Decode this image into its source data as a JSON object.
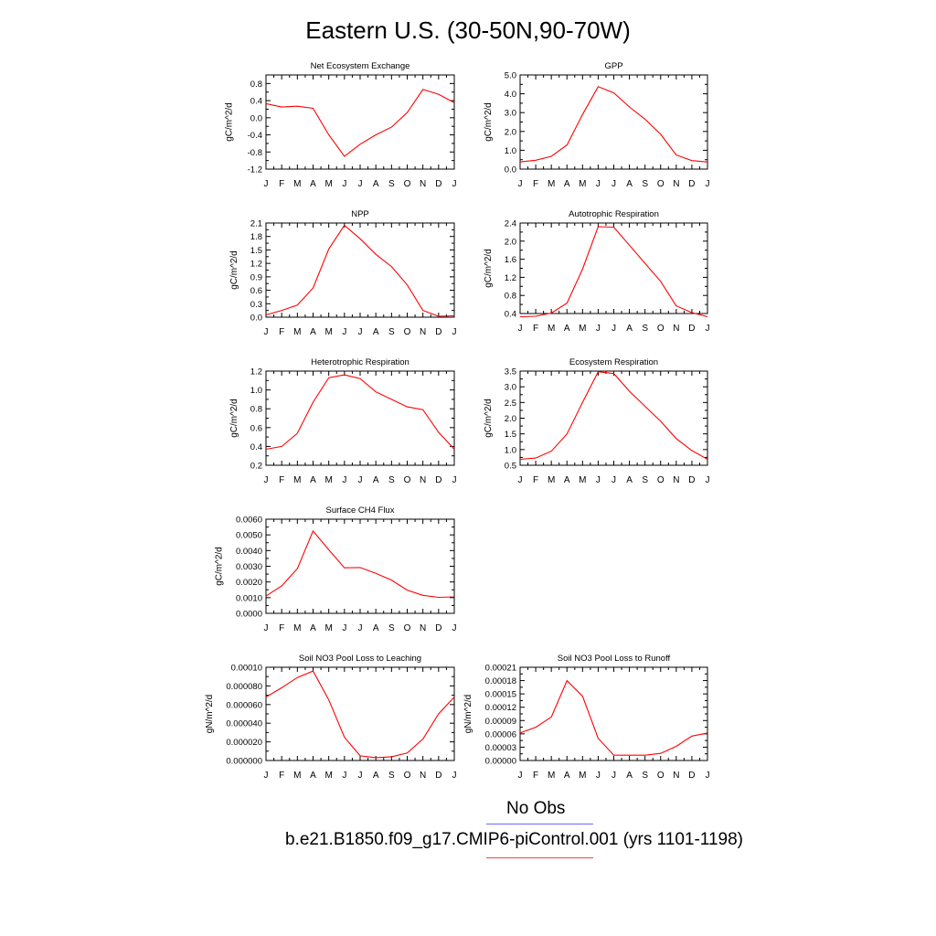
{
  "page": {
    "title": "Eastern U.S. (30-50N,90-70W)"
  },
  "legend": {
    "obs_label": "No Obs",
    "obs_color": "#6b6bff",
    "case_label": "b.e21.B1850.f09_g17.CMIP6-piControl.001 (yrs 1101-1198)",
    "case_color": "#ff4040"
  },
  "line_color": "#ff0000",
  "chart_data": [
    {
      "type": "line",
      "title": "Net Ecosystem Exchange",
      "ylabel": "gC/m^2/d",
      "categories": [
        "J",
        "F",
        "M",
        "A",
        "M",
        "J",
        "J",
        "A",
        "S",
        "O",
        "N",
        "D",
        "J"
      ],
      "values": [
        0.33,
        0.25,
        0.27,
        0.22,
        -0.4,
        -0.9,
        -0.62,
        -0.4,
        -0.22,
        0.12,
        0.66,
        0.55,
        0.35
      ],
      "ylim": [
        -1.2,
        1.0
      ],
      "yticks": [
        -1.2,
        -0.8,
        -0.4,
        0.0,
        0.4,
        0.8
      ],
      "ytick_labels": [
        "-1.2",
        "-0.8",
        "-0.4",
        "0.0",
        "0.4",
        "0.8"
      ]
    },
    {
      "type": "line",
      "title": "GPP",
      "ylabel": "gC/m^2/d",
      "categories": [
        "J",
        "F",
        "M",
        "A",
        "M",
        "J",
        "J",
        "A",
        "S",
        "O",
        "N",
        "D",
        "J"
      ],
      "values": [
        0.38,
        0.47,
        0.68,
        1.28,
        2.9,
        4.38,
        4.05,
        3.3,
        2.65,
        1.85,
        0.75,
        0.45,
        0.38
      ],
      "ylim": [
        0.0,
        5.0
      ],
      "yticks": [
        0,
        1,
        2,
        3,
        4,
        5
      ],
      "ytick_labels": [
        "0.0",
        "1.0",
        "2.0",
        "3.0",
        "4.0",
        "5.0"
      ]
    },
    {
      "type": "line",
      "title": "NPP",
      "ylabel": "gC/m^2/d",
      "categories": [
        "J",
        "F",
        "M",
        "A",
        "M",
        "J",
        "J",
        "A",
        "S",
        "O",
        "N",
        "D",
        "J"
      ],
      "values": [
        0.05,
        0.15,
        0.27,
        0.65,
        1.52,
        2.05,
        1.75,
        1.4,
        1.13,
        0.72,
        0.15,
        0.02,
        0.03
      ],
      "ylim": [
        0.0,
        2.1
      ],
      "yticks": [
        0,
        0.3,
        0.6,
        0.9,
        1.2,
        1.5,
        1.8,
        2.1
      ],
      "ytick_labels": [
        "0.0",
        "0.3",
        "0.6",
        "0.9",
        "1.2",
        "1.5",
        "1.8",
        "2.1"
      ]
    },
    {
      "type": "line",
      "title": "Autotrophic Respiration",
      "ylabel": "gC/m^2/d",
      "categories": [
        "J",
        "F",
        "M",
        "A",
        "M",
        "J",
        "J",
        "A",
        "S",
        "O",
        "N",
        "D",
        "J"
      ],
      "values": [
        0.33,
        0.34,
        0.41,
        0.63,
        1.38,
        2.32,
        2.31,
        1.91,
        1.51,
        1.11,
        0.57,
        0.42,
        0.33
      ],
      "ylim": [
        0.4,
        2.4
      ],
      "yticks": [
        0.4,
        0.8,
        1.2,
        1.6,
        2.0,
        2.4
      ],
      "ytick_labels": [
        "0.4",
        "0.8",
        "1.2",
        "1.6",
        "2.0",
        "2.4"
      ]
    },
    {
      "type": "line",
      "title": "Heterotrophic Respiration",
      "ylabel": "gC/m^2/d",
      "categories": [
        "J",
        "F",
        "M",
        "A",
        "M",
        "J",
        "J",
        "A",
        "S",
        "O",
        "N",
        "D",
        "J"
      ],
      "values": [
        0.37,
        0.4,
        0.54,
        0.87,
        1.13,
        1.16,
        1.12,
        0.98,
        0.9,
        0.82,
        0.79,
        0.55,
        0.37
      ],
      "ylim": [
        0.2,
        1.2
      ],
      "yticks": [
        0.2,
        0.4,
        0.6,
        0.8,
        1.0,
        1.2
      ],
      "ytick_labels": [
        "0.2",
        "0.4",
        "0.6",
        "0.8",
        "1.0",
        "1.2"
      ]
    },
    {
      "type": "line",
      "title": "Ecosystem Respiration",
      "ylabel": "gC/m^2/d",
      "categories": [
        "J",
        "F",
        "M",
        "A",
        "M",
        "J",
        "J",
        "A",
        "S",
        "O",
        "N",
        "D",
        "J"
      ],
      "values": [
        0.69,
        0.73,
        0.95,
        1.5,
        2.5,
        3.48,
        3.42,
        2.86,
        2.38,
        1.9,
        1.35,
        0.97,
        0.69
      ],
      "ylim": [
        0.5,
        3.5
      ],
      "yticks": [
        0.5,
        1.0,
        1.5,
        2.0,
        2.5,
        3.0,
        3.5
      ],
      "ytick_labels": [
        "0.5",
        "1.0",
        "1.5",
        "2.0",
        "2.5",
        "3.0",
        "3.5"
      ]
    },
    {
      "type": "line",
      "title": "Surface CH4 Flux",
      "ylabel": "gC/m^2/d",
      "categories": [
        "J",
        "F",
        "M",
        "A",
        "M",
        "J",
        "J",
        "A",
        "S",
        "O",
        "N",
        "D",
        "J"
      ],
      "values": [
        0.0011,
        0.00175,
        0.00285,
        0.00525,
        0.00405,
        0.0029,
        0.00292,
        0.00255,
        0.00212,
        0.00148,
        0.00115,
        0.00102,
        0.00105
      ],
      "ylim": [
        0.0,
        0.006
      ],
      "yticks": [
        0,
        0.001,
        0.002,
        0.003,
        0.004,
        0.005,
        0.006
      ],
      "ytick_labels": [
        "0.0000",
        "0.0010",
        "0.0020",
        "0.0030",
        "0.0040",
        "0.0050",
        "0.0060"
      ]
    },
    {
      "type": "line",
      "title": "Soil NO3 Pool Loss to Leaching",
      "ylabel": "gN/m^2/d",
      "categories": [
        "J",
        "F",
        "M",
        "A",
        "M",
        "J",
        "J",
        "A",
        "S",
        "O",
        "N",
        "D",
        "J"
      ],
      "values": [
        6.8e-05,
        7.8e-05,
        8.9e-05,
        9.6e-05,
        6.5e-05,
        2.5e-05,
        5e-06,
        3e-06,
        4e-06,
        8e-06,
        2.3e-05,
        5e-05,
        6.8e-05
      ],
      "ylim": [
        0.0,
        0.0001
      ],
      "yticks": [
        0,
        2e-05,
        4e-05,
        6e-05,
        8e-05,
        0.0001
      ],
      "ytick_labels": [
        "0.000000",
        "0.000020",
        "0.000040",
        "0.000060",
        "0.000080",
        "0.00010"
      ]
    },
    {
      "type": "line",
      "title": "Soil NO3 Pool Loss to Runoff",
      "ylabel": "gN/m^2/d",
      "categories": [
        "J",
        "F",
        "M",
        "A",
        "M",
        "J",
        "J",
        "A",
        "S",
        "O",
        "N",
        "D",
        "J"
      ],
      "values": [
        6.2e-05,
        7.5e-05,
        9.8e-05,
        0.00018,
        0.000145,
        5e-05,
        1.2e-05,
        1.2e-05,
        1.2e-05,
        1.6e-05,
        3.2e-05,
        5.5e-05,
        6.2e-05
      ],
      "ylim": [
        0.0,
        0.00021
      ],
      "yticks": [
        0,
        3e-05,
        6e-05,
        9e-05,
        0.00012,
        0.00015,
        0.00018,
        0.00021
      ],
      "ytick_labels": [
        "0.00000",
        "0.00003",
        "0.00006",
        "0.00009",
        "0.00012",
        "0.00015",
        "0.00018",
        "0.00021"
      ]
    }
  ]
}
